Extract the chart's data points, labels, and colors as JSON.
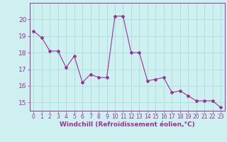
{
  "x": [
    0,
    1,
    2,
    3,
    4,
    5,
    6,
    7,
    8,
    9,
    10,
    11,
    12,
    13,
    14,
    15,
    16,
    17,
    18,
    19,
    20,
    21,
    22,
    23
  ],
  "y": [
    19.3,
    18.9,
    18.1,
    18.1,
    17.1,
    17.8,
    16.2,
    16.7,
    16.5,
    16.5,
    20.2,
    20.2,
    18.0,
    18.0,
    16.3,
    16.4,
    16.5,
    15.6,
    15.7,
    15.4,
    15.1,
    15.1,
    15.1,
    14.7
  ],
  "line_color": "#993399",
  "marker": "D",
  "markersize": 2.0,
  "linewidth": 0.8,
  "background_color": "#cef0f0",
  "grid_color": "#aadddd",
  "xlabel": "Windchill (Refroidissement éolien,°C)",
  "xlabel_color": "#993399",
  "tick_color": "#993399",
  "ylim": [
    14.5,
    21.0
  ],
  "xlim": [
    -0.5,
    23.5
  ],
  "yticks": [
    15,
    16,
    17,
    18,
    19,
    20
  ],
  "xticks": [
    0,
    1,
    2,
    3,
    4,
    5,
    6,
    7,
    8,
    9,
    10,
    11,
    12,
    13,
    14,
    15,
    16,
    17,
    18,
    19,
    20,
    21,
    22,
    23
  ],
  "xtick_labels": [
    "0",
    "1",
    "2",
    "3",
    "4",
    "5",
    "6",
    "7",
    "8",
    "9",
    "10",
    "11",
    "12",
    "13",
    "14",
    "15",
    "16",
    "17",
    "18",
    "19",
    "20",
    "21",
    "22",
    "23"
  ],
  "spine_color": "#993399",
  "tick_fontsize": 5.5,
  "ytick_fontsize": 6.5,
  "xlabel_fontsize": 6.5
}
